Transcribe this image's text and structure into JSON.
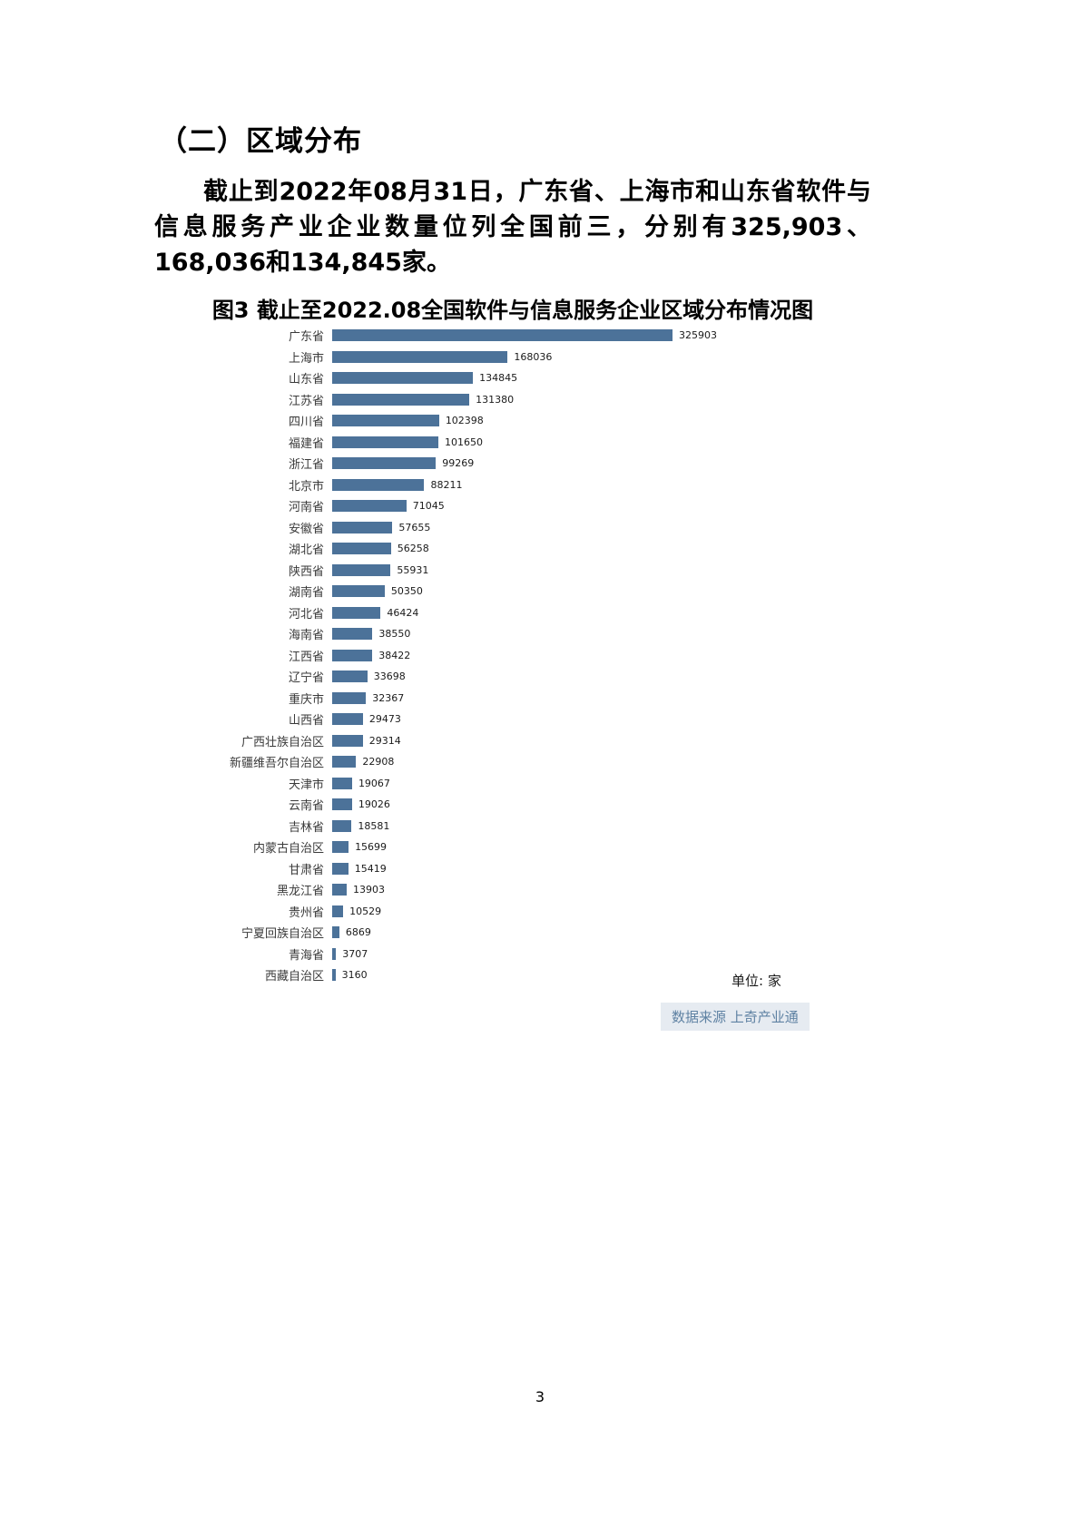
{
  "page": {
    "heading": "（二）区域分布",
    "paragraph": "截止到2022年08月31日，广东省、上海市和山东省软件与信息服务产业企业数量位列全国前三，分别有325,903、168,036和134,845家。",
    "page_number": "3"
  },
  "chart_data": {
    "type": "bar",
    "orientation": "horizontal",
    "title": "图3 截止至2022.08全国软件与信息服务企业区域分布情况图",
    "unit_label": "单位: 家",
    "source_label": "数据来源 上奇产业通",
    "bar_color": "#4C7299",
    "xlim": [
      0,
      340000
    ],
    "categories": [
      "广东省",
      "上海市",
      "山东省",
      "江苏省",
      "四川省",
      "福建省",
      "浙江省",
      "北京市",
      "河南省",
      "安徽省",
      "湖北省",
      "陕西省",
      "湖南省",
      "河北省",
      "海南省",
      "江西省",
      "辽宁省",
      "重庆市",
      "山西省",
      "广西壮族自治区",
      "新疆维吾尔自治区",
      "天津市",
      "云南省",
      "吉林省",
      "内蒙古自治区",
      "甘肃省",
      "黑龙江省",
      "贵州省",
      "宁夏回族自治区",
      "青海省",
      "西藏自治区"
    ],
    "values": [
      325903,
      168036,
      134845,
      131380,
      102398,
      101650,
      99269,
      88211,
      71045,
      57655,
      56258,
      55931,
      50350,
      46424,
      38550,
      38422,
      33698,
      32367,
      29473,
      29314,
      22908,
      19067,
      19026,
      18581,
      15699,
      15419,
      13903,
      10529,
      6869,
      3707,
      3160
    ]
  }
}
